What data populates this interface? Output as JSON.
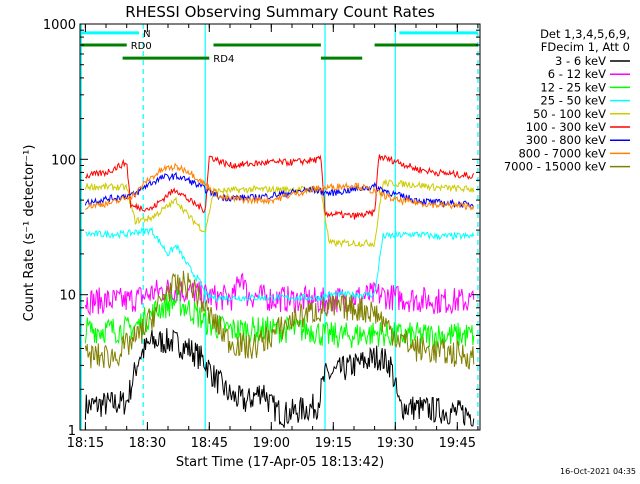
{
  "chart_data": {
    "type": "line",
    "title": "RHESSI Observing Summary Count Rates",
    "xlabel": "Start Time (17-Apr-05 18:13:42)",
    "ylabel": "Count Rate (s⁻¹ detector⁻¹)",
    "y_scale": "log",
    "ylim": [
      1,
      1000
    ],
    "xlim": [
      "18:13:42",
      "19:50:30"
    ],
    "x_ticks": [
      "18:15",
      "18:30",
      "18:45",
      "19:00",
      "19:15",
      "19:30",
      "19:45"
    ],
    "y_ticks": [
      "1",
      "10",
      "100",
      "1000"
    ],
    "grid": false,
    "legend_position": "outside-right",
    "legend_header": [
      "Det 1,3,4,5,6,9,",
      "FDecim 1, Att 0"
    ],
    "series": [
      {
        "name": "3 - 6 keV",
        "color": "#000000",
        "points": [
          [
            "18:15",
            1.5
          ],
          [
            "18:25",
            1.6
          ],
          [
            "18:28",
            3.5
          ],
          [
            "18:31",
            4.5
          ],
          [
            "18:36",
            4.5
          ],
          [
            "18:40",
            4.0
          ],
          [
            "18:44",
            3.2
          ],
          [
            "18:46",
            2.5
          ],
          [
            "18:50",
            1.8
          ],
          [
            "18:54",
            1.6
          ],
          [
            "18:58",
            2.0
          ],
          [
            "19:00",
            1.5
          ],
          [
            "19:03",
            1.3
          ],
          [
            "19:07",
            1.4
          ],
          [
            "19:11",
            1.5
          ],
          [
            "19:13",
            2.5
          ],
          [
            "19:20",
            3.0
          ],
          [
            "19:26",
            3.5
          ],
          [
            "19:29",
            3.0
          ],
          [
            "19:31",
            1.5
          ],
          [
            "19:40",
            1.4
          ],
          [
            "19:49",
            1.3
          ]
        ]
      },
      {
        "name": "6 - 12 keV",
        "color": "#ff00ff",
        "points": [
          [
            "18:15",
            9.0
          ],
          [
            "18:25",
            9.0
          ],
          [
            "18:28",
            9.5
          ],
          [
            "18:32",
            10.5
          ],
          [
            "18:36",
            11.0
          ],
          [
            "18:40",
            10.5
          ],
          [
            "18:44",
            9.8
          ],
          [
            "18:47",
            9.5
          ],
          [
            "18:51",
            9.5
          ],
          [
            "18:53",
            15.0
          ],
          [
            "18:54",
            10.0
          ],
          [
            "18:58",
            9.5
          ],
          [
            "19:05",
            9.2
          ],
          [
            "19:13",
            9.0
          ],
          [
            "19:15",
            9.2
          ],
          [
            "19:20",
            9.5
          ],
          [
            "19:26",
            10.0
          ],
          [
            "19:30",
            9.5
          ],
          [
            "19:40",
            9.0
          ],
          [
            "19:49",
            9.0
          ]
        ]
      },
      {
        "name": "12 - 25 keV",
        "color": "#00ff00",
        "points": [
          [
            "18:15",
            5.5
          ],
          [
            "18:25",
            5.5
          ],
          [
            "18:28",
            6.0
          ],
          [
            "18:33",
            8.0
          ],
          [
            "18:37",
            9.0
          ],
          [
            "18:41",
            7.5
          ],
          [
            "18:45",
            6.0
          ],
          [
            "18:50",
            5.5
          ],
          [
            "19:00",
            5.5
          ],
          [
            "19:10",
            5.5
          ],
          [
            "19:13",
            5.0
          ],
          [
            "19:20",
            5.0
          ],
          [
            "19:26",
            5.2
          ],
          [
            "19:30",
            5.0
          ],
          [
            "19:40",
            5.0
          ],
          [
            "19:49",
            5.0
          ]
        ]
      },
      {
        "name": "25 - 50 keV",
        "color": "#00ffff",
        "points": [
          [
            "18:15",
            28
          ],
          [
            "18:25",
            28
          ],
          [
            "18:27",
            29
          ],
          [
            "18:31",
            30
          ],
          [
            "18:35",
            20
          ],
          [
            "18:37",
            23
          ],
          [
            "18:40",
            16
          ],
          [
            "18:43",
            12
          ],
          [
            "18:44",
            10
          ],
          [
            "18:46",
            9.5
          ],
          [
            "18:50",
            9.5
          ],
          [
            "19:00",
            9.5
          ],
          [
            "19:05",
            9.5
          ],
          [
            "19:12",
            9.5
          ],
          [
            "19:14",
            10
          ],
          [
            "19:20",
            10
          ],
          [
            "19:25",
            10
          ],
          [
            "19:27",
            27
          ],
          [
            "19:35",
            28
          ],
          [
            "19:40",
            27
          ],
          [
            "19:49",
            27
          ]
        ]
      },
      {
        "name": "50 - 100 keV",
        "color": "#cccc00",
        "points": [
          [
            "18:15",
            63
          ],
          [
            "18:25",
            62
          ],
          [
            "18:27",
            35
          ],
          [
            "18:31",
            37
          ],
          [
            "18:35",
            45
          ],
          [
            "18:37",
            50
          ],
          [
            "18:40",
            38
          ],
          [
            "18:44",
            29
          ],
          [
            "18:46",
            58
          ],
          [
            "18:55",
            60
          ],
          [
            "19:05",
            60
          ],
          [
            "19:12",
            60
          ],
          [
            "19:14",
            24
          ],
          [
            "19:25",
            24
          ],
          [
            "19:27",
            67
          ],
          [
            "19:35",
            65
          ],
          [
            "19:40",
            62
          ],
          [
            "19:49",
            60
          ]
        ]
      },
      {
        "name": "100 - 300 keV",
        "color": "#ff0000",
        "points": [
          [
            "18:15",
            75
          ],
          [
            "18:20",
            80
          ],
          [
            "18:25",
            95
          ],
          [
            "18:26",
            45
          ],
          [
            "18:31",
            43
          ],
          [
            "18:35",
            55
          ],
          [
            "18:37",
            60
          ],
          [
            "18:40",
            50
          ],
          [
            "18:44",
            42
          ],
          [
            "18:45",
            105
          ],
          [
            "18:50",
            90
          ],
          [
            "19:00",
            95
          ],
          [
            "19:05",
            95
          ],
          [
            "19:12",
            100
          ],
          [
            "19:13",
            40
          ],
          [
            "19:20",
            38
          ],
          [
            "19:25",
            40
          ],
          [
            "19:26",
            105
          ],
          [
            "19:31",
            95
          ],
          [
            "19:35",
            85
          ],
          [
            "19:40",
            80
          ],
          [
            "19:49",
            75
          ]
        ]
      },
      {
        "name": "300 - 800 keV",
        "color": "#0000ff",
        "points": [
          [
            "18:15",
            48
          ],
          [
            "18:22",
            52
          ],
          [
            "18:27",
            55
          ],
          [
            "18:30",
            65
          ],
          [
            "18:34",
            74
          ],
          [
            "18:37",
            75
          ],
          [
            "18:40",
            70
          ],
          [
            "18:44",
            60
          ],
          [
            "18:48",
            52
          ],
          [
            "18:55",
            52
          ],
          [
            "19:00",
            54
          ],
          [
            "19:05",
            57
          ],
          [
            "19:10",
            60
          ],
          [
            "19:14",
            56
          ],
          [
            "19:20",
            60
          ],
          [
            "19:25",
            63
          ],
          [
            "19:30",
            55
          ],
          [
            "19:35",
            50
          ],
          [
            "19:40",
            48
          ],
          [
            "19:49",
            46
          ]
        ]
      },
      {
        "name": "800 - 7000 keV",
        "color": "#ff8000",
        "points": [
          [
            "18:15",
            45
          ],
          [
            "18:22",
            48
          ],
          [
            "18:27",
            55
          ],
          [
            "18:30",
            70
          ],
          [
            "18:34",
            85
          ],
          [
            "18:37",
            88
          ],
          [
            "18:40",
            82
          ],
          [
            "18:44",
            65
          ],
          [
            "18:48",
            52
          ],
          [
            "18:55",
            50
          ],
          [
            "19:00",
            50
          ],
          [
            "19:05",
            55
          ],
          [
            "19:10",
            60
          ],
          [
            "19:14",
            62
          ],
          [
            "19:20",
            65
          ],
          [
            "19:25",
            58
          ],
          [
            "19:30",
            50
          ],
          [
            "19:35",
            48
          ],
          [
            "19:40",
            46
          ],
          [
            "19:49",
            45
          ]
        ]
      },
      {
        "name": "7000 - 15000 keV",
        "color": "#808000",
        "points": [
          [
            "18:15",
            3.5
          ],
          [
            "18:22",
            3.5
          ],
          [
            "18:28",
            5.0
          ],
          [
            "18:32",
            7.5
          ],
          [
            "18:35",
            11.0
          ],
          [
            "18:39",
            12.0
          ],
          [
            "18:41",
            11.5
          ],
          [
            "18:45",
            7.0
          ],
          [
            "18:50",
            4.5
          ],
          [
            "18:55",
            4.0
          ],
          [
            "19:00",
            5.0
          ],
          [
            "19:05",
            6.5
          ],
          [
            "19:10",
            7.5
          ],
          [
            "19:15",
            8.0
          ],
          [
            "19:20",
            8.0
          ],
          [
            "19:25",
            7.5
          ],
          [
            "19:30",
            5.0
          ],
          [
            "19:35",
            4.0
          ],
          [
            "19:40",
            3.8
          ],
          [
            "19:49",
            3.5
          ]
        ]
      }
    ],
    "segment_bars": [
      {
        "name": "N",
        "color": "#00ffff",
        "level": 860,
        "spans": [
          [
            "18:14",
            "18:28"
          ],
          [
            "19:31",
            "19:50"
          ]
        ]
      },
      {
        "name": "RD0",
        "color": "#008000",
        "level": 700,
        "spans": [
          [
            "18:14",
            "18:25"
          ],
          [
            "18:46",
            "19:12"
          ],
          [
            "19:25",
            "19:50"
          ]
        ]
      },
      {
        "name": "RD4",
        "color": "#008000",
        "level": 560,
        "spans": [
          [
            "18:24",
            "18:45"
          ],
          [
            "19:12",
            "19:22"
          ]
        ]
      }
    ],
    "vlines": [
      {
        "time": "18:14",
        "color": "#00ffff",
        "style": "solid"
      },
      {
        "time": "18:29",
        "color": "#00ffff",
        "style": "dashed"
      },
      {
        "time": "18:44",
        "color": "#00ffff",
        "style": "solid"
      },
      {
        "time": "19:13",
        "color": "#00ffff",
        "style": "solid"
      },
      {
        "time": "19:30",
        "color": "#00ffff",
        "style": "solid"
      },
      {
        "time": "19:50",
        "color": "#00ffff",
        "style": "dashed"
      }
    ]
  },
  "footer_timestamp": "16-Oct-2021 04:35"
}
